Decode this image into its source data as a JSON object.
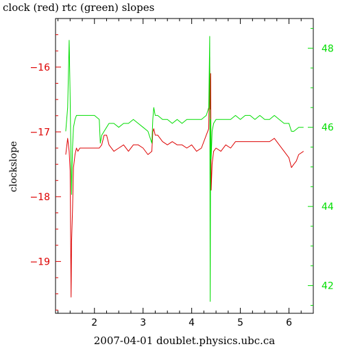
{
  "chart_data": {
    "type": "line",
    "title": "clock (red) rtc (green) slopes",
    "xlabel": "2007-04-01 doublet.physics.ubc.ca",
    "ylabel": "clockslope",
    "xlim": [
      1.2,
      6.5
    ],
    "ylim": [
      -19.8,
      -15.25
    ],
    "y2lim": [
      41.3,
      48.75
    ],
    "xticks": [
      2,
      3,
      4,
      5,
      6
    ],
    "yticks": [
      -19,
      -18,
      -17,
      -16
    ],
    "y2ticks": [
      42,
      44,
      46,
      48
    ],
    "colors": {
      "clock": "#dd0000",
      "rtc": "#00dd00",
      "axis": "#000000"
    },
    "series": [
      {
        "name": "clock",
        "axis": "left",
        "x": [
          1.41,
          1.45,
          1.48,
          1.5,
          1.52,
          1.53,
          1.55,
          1.57,
          1.6,
          1.63,
          1.66,
          1.7,
          1.8,
          1.9,
          2.0,
          2.1,
          2.15,
          2.2,
          2.25,
          2.3,
          2.4,
          2.5,
          2.6,
          2.7,
          2.8,
          2.9,
          3.0,
          3.1,
          3.18,
          3.2,
          3.22,
          3.25,
          3.3,
          3.4,
          3.5,
          3.6,
          3.7,
          3.8,
          3.9,
          4.0,
          4.1,
          4.2,
          4.3,
          4.35,
          4.37,
          4.38,
          4.39,
          4.4,
          4.42,
          4.45,
          4.5,
          4.6,
          4.7,
          4.8,
          4.9,
          5.0,
          5.1,
          5.2,
          5.3,
          5.4,
          5.5,
          5.6,
          5.7,
          5.8,
          5.9,
          6.0,
          6.05,
          6.1,
          6.15,
          6.2,
          6.3
        ],
        "y": [
          -17.35,
          -17.1,
          -17.3,
          -17.6,
          -19.55,
          -18.7,
          -18.2,
          -17.55,
          -17.35,
          -17.25,
          -17.3,
          -17.25,
          -17.25,
          -17.25,
          -17.25,
          -17.25,
          -17.2,
          -17.05,
          -17.05,
          -17.2,
          -17.3,
          -17.25,
          -17.2,
          -17.3,
          -17.2,
          -17.2,
          -17.25,
          -17.35,
          -17.3,
          -17.0,
          -16.95,
          -17.05,
          -17.05,
          -17.15,
          -17.2,
          -17.15,
          -17.2,
          -17.2,
          -17.25,
          -17.2,
          -17.3,
          -17.25,
          -17.05,
          -16.95,
          -15.85,
          -16.65,
          -16.1,
          -17.9,
          -17.5,
          -17.3,
          -17.25,
          -17.3,
          -17.2,
          -17.25,
          -17.15,
          -17.15,
          -17.15,
          -17.15,
          -17.15,
          -17.15,
          -17.15,
          -17.15,
          -17.1,
          -17.2,
          -17.3,
          -17.4,
          -17.55,
          -17.5,
          -17.45,
          -17.35,
          -17.3
        ]
      },
      {
        "name": "rtc",
        "axis": "right",
        "x": [
          1.41,
          1.45,
          1.48,
          1.5,
          1.52,
          1.53,
          1.55,
          1.57,
          1.6,
          1.63,
          1.66,
          1.7,
          1.8,
          1.9,
          2.0,
          2.1,
          2.12,
          2.15,
          2.2,
          2.25,
          2.3,
          2.4,
          2.5,
          2.6,
          2.7,
          2.8,
          2.9,
          3.0,
          3.1,
          3.18,
          3.2,
          3.22,
          3.25,
          3.3,
          3.4,
          3.5,
          3.6,
          3.7,
          3.8,
          3.9,
          4.0,
          4.1,
          4.2,
          4.3,
          4.35,
          4.37,
          4.38,
          4.39,
          4.4,
          4.42,
          4.45,
          4.5,
          4.6,
          4.7,
          4.8,
          4.9,
          5.0,
          5.1,
          5.2,
          5.3,
          5.4,
          5.5,
          5.6,
          5.7,
          5.8,
          5.9,
          6.0,
          6.05,
          6.1,
          6.15,
          6.2,
          6.3
        ],
        "y": [
          45.9,
          46.5,
          48.2,
          46.8,
          45.0,
          44.3,
          45.5,
          46.0,
          46.2,
          46.3,
          46.3,
          46.3,
          46.3,
          46.3,
          46.3,
          46.2,
          45.6,
          45.8,
          45.9,
          46.0,
          46.1,
          46.1,
          46.0,
          46.1,
          46.1,
          46.2,
          46.1,
          46.0,
          45.9,
          45.6,
          46.2,
          46.5,
          46.3,
          46.3,
          46.2,
          46.2,
          46.1,
          46.2,
          46.1,
          46.2,
          46.2,
          46.2,
          46.2,
          46.3,
          46.5,
          48.3,
          41.6,
          46.2,
          45.2,
          45.9,
          46.1,
          46.2,
          46.2,
          46.2,
          46.2,
          46.3,
          46.2,
          46.3,
          46.3,
          46.2,
          46.3,
          46.2,
          46.2,
          46.3,
          46.2,
          46.1,
          46.1,
          45.9,
          45.9,
          45.95,
          46.0,
          46.0
        ]
      }
    ]
  }
}
